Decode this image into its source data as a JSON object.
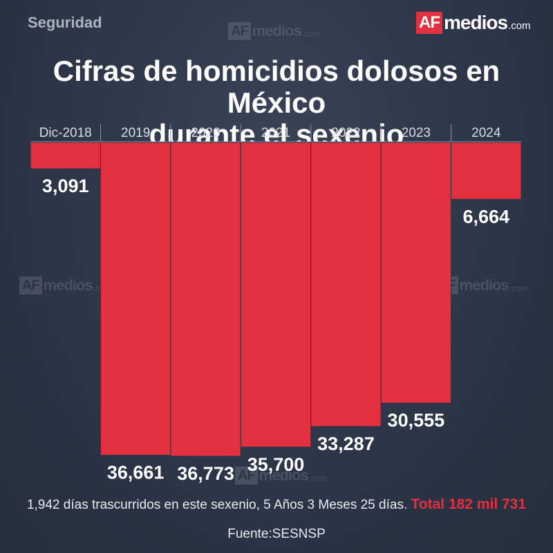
{
  "header": {
    "section": "Seguridad",
    "logo": {
      "box": "AF",
      "text": "medios",
      "suffix": ".com"
    },
    "title_line1": "Cifras de homicidios dolosos en México",
    "title_line2": "durante el sexenio"
  },
  "chart_data": {
    "type": "bar",
    "orientation": "downward",
    "categories": [
      "Dic-2018",
      "2019",
      "2020",
      "2021",
      "2022",
      "2023",
      "2024"
    ],
    "values": [
      3091,
      36661,
      36773,
      35700,
      33287,
      30555,
      6664
    ],
    "value_labels": [
      "3,091",
      "36,661",
      "36,773",
      "35,700",
      "33,287",
      "30,555",
      "6,664"
    ],
    "ylim": [
      0,
      36773
    ],
    "bar_color": "#e3303f",
    "grid": false,
    "title": "Cifras de homicidios dolosos en México durante el sexenio"
  },
  "footer": {
    "summary": "1,942 días trascurridos en este sexenio, 5 Años 3 Meses 25 días.",
    "total": "Total 182 mil 731",
    "source": "Fuente:SESNSP"
  },
  "colors": {
    "accent": "#e3303f",
    "background": "#2c3447"
  }
}
